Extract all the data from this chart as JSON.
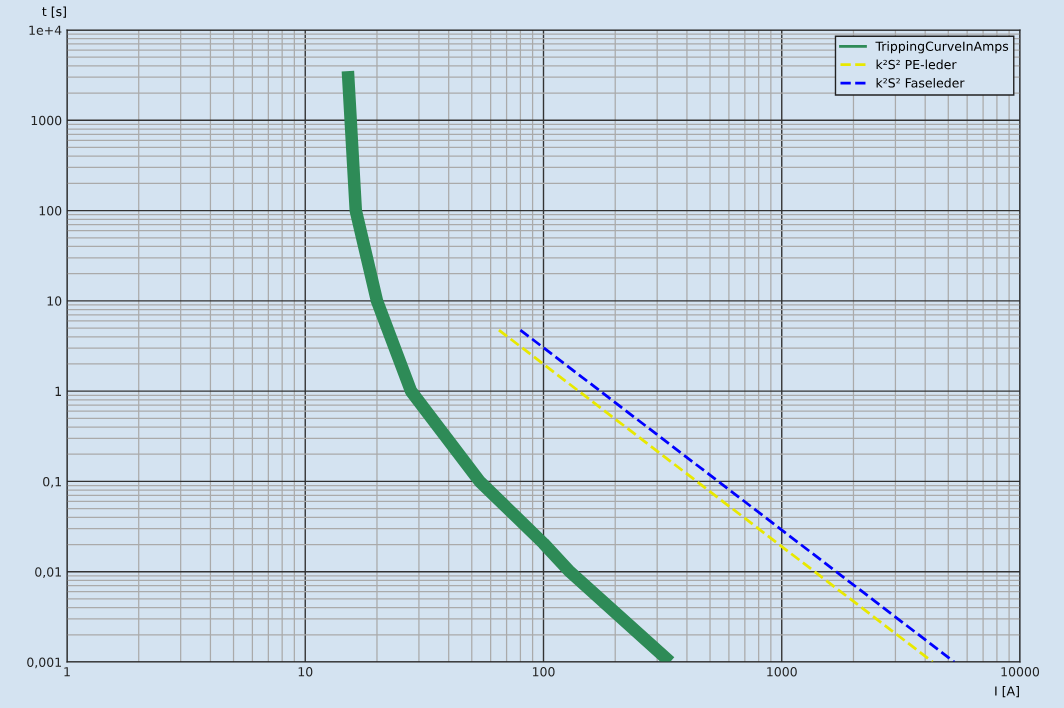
{
  "chart_data": {
    "type": "line",
    "xlabel": "I [A]",
    "ylabel": "t [s]",
    "log": "xy",
    "grid": true,
    "legend": "top right",
    "line_style": "solid",
    "marker": "none",
    "xlim": [
      1,
      10000
    ],
    "xticks": [
      1,
      10,
      100,
      1000,
      10000
    ],
    "ylim": [
      0.001,
      10000
    ],
    "yticks": [
      {
        "value": 0.001,
        "label": "0,001"
      },
      {
        "value": 0.01,
        "label": "0,01"
      },
      {
        "value": 0.1,
        "label": "0,1"
      },
      1,
      10,
      100,
      1000,
      {
        "value": 10000,
        "label": "1e+4"
      }
    ],
    "series": [
      {
        "name": "TrippingCurveInAmps",
        "color": "#2e8b57",
        "x": [
          15.1,
          16.3,
          20,
          27.8,
          54,
          100,
          129,
          340
        ],
        "values": [
          3500,
          100,
          10,
          1,
          0.1,
          0.0206,
          0.01,
          0.001
        ]
      },
      {
        "name": "k²S² PE-leder",
        "color": "#e8e800",
        "line_style": "dashed",
        "x": [
          65,
          4300
        ],
        "values": [
          4.75,
          0.001
        ]
      },
      {
        "name": "k²S² Faseleder",
        "color": "#0000ff",
        "line_style": "dashed",
        "x": [
          80,
          5300
        ],
        "values": [
          4.75,
          0.001
        ]
      }
    ]
  }
}
